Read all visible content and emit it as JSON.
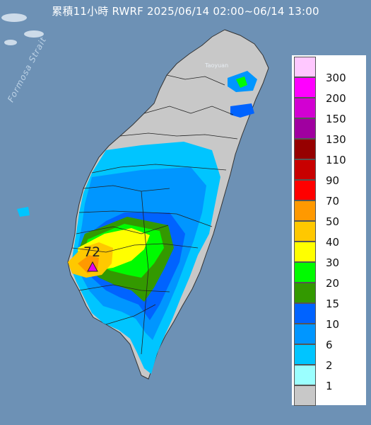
{
  "title": "累積11小時 RWRF 2025/06/14 02:00~06/14 13:00",
  "sea_label": "Formosa Strait",
  "place_label": "Taoyuan",
  "max_value": "72",
  "legend": [
    {
      "label": "300",
      "color": "#ffc8ff"
    },
    {
      "label": "200",
      "color": "#ff00ff"
    },
    {
      "label": "150",
      "color": "#d200d2"
    },
    {
      "label": "130",
      "color": "#a000a0"
    },
    {
      "label": "110",
      "color": "#960000"
    },
    {
      "label": "90",
      "color": "#c80000"
    },
    {
      "label": "70",
      "color": "#ff0000"
    },
    {
      "label": "50",
      "color": "#ff9900"
    },
    {
      "label": "40",
      "color": "#ffc800"
    },
    {
      "label": "30",
      "color": "#ffff00"
    },
    {
      "label": "20",
      "color": "#00fb00"
    },
    {
      "label": "15",
      "color": "#339900"
    },
    {
      "label": "10",
      "color": "#0063ff"
    },
    {
      "label": "6",
      "color": "#0096ff"
    },
    {
      "label": "2",
      "color": "#00c5ff"
    },
    {
      "label": "1",
      "color": "#9bffff"
    },
    {
      "label": "",
      "color": "#c8c8c8"
    }
  ]
}
